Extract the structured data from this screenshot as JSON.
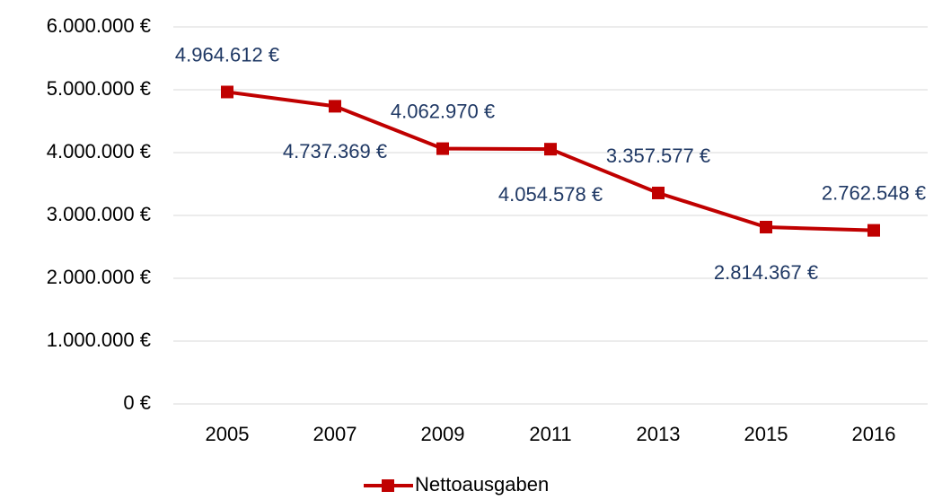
{
  "chart_data": {
    "type": "line",
    "categories": [
      "2005",
      "2007",
      "2009",
      "2011",
      "2013",
      "2015",
      "2016"
    ],
    "series": [
      {
        "name": "Nettoausgaben",
        "color": "#c00000",
        "values": [
          4964612,
          4737369,
          4062970,
          4054578,
          3357577,
          2814367,
          2762548
        ],
        "value_labels": [
          "4.964.612 €",
          "4.737.369 €",
          "4.062.970 €",
          "4.054.578 €",
          "3.357.577 €",
          "2.814.367 €",
          "2.762.548 €"
        ]
      }
    ],
    "ylim": [
      0,
      6000000
    ],
    "yticks": [
      {
        "value": 0,
        "label": "0 €"
      },
      {
        "value": 1000000,
        "label": "1.000.000 €"
      },
      {
        "value": 2000000,
        "label": "2.000.000 €"
      },
      {
        "value": 3000000,
        "label": "3.000.000 €"
      },
      {
        "value": 4000000,
        "label": "4.000.000 €"
      },
      {
        "value": 5000000,
        "label": "5.000.000 €"
      },
      {
        "value": 6000000,
        "label": "6.000.000 €"
      }
    ],
    "grid": true,
    "legend": "bottom"
  }
}
